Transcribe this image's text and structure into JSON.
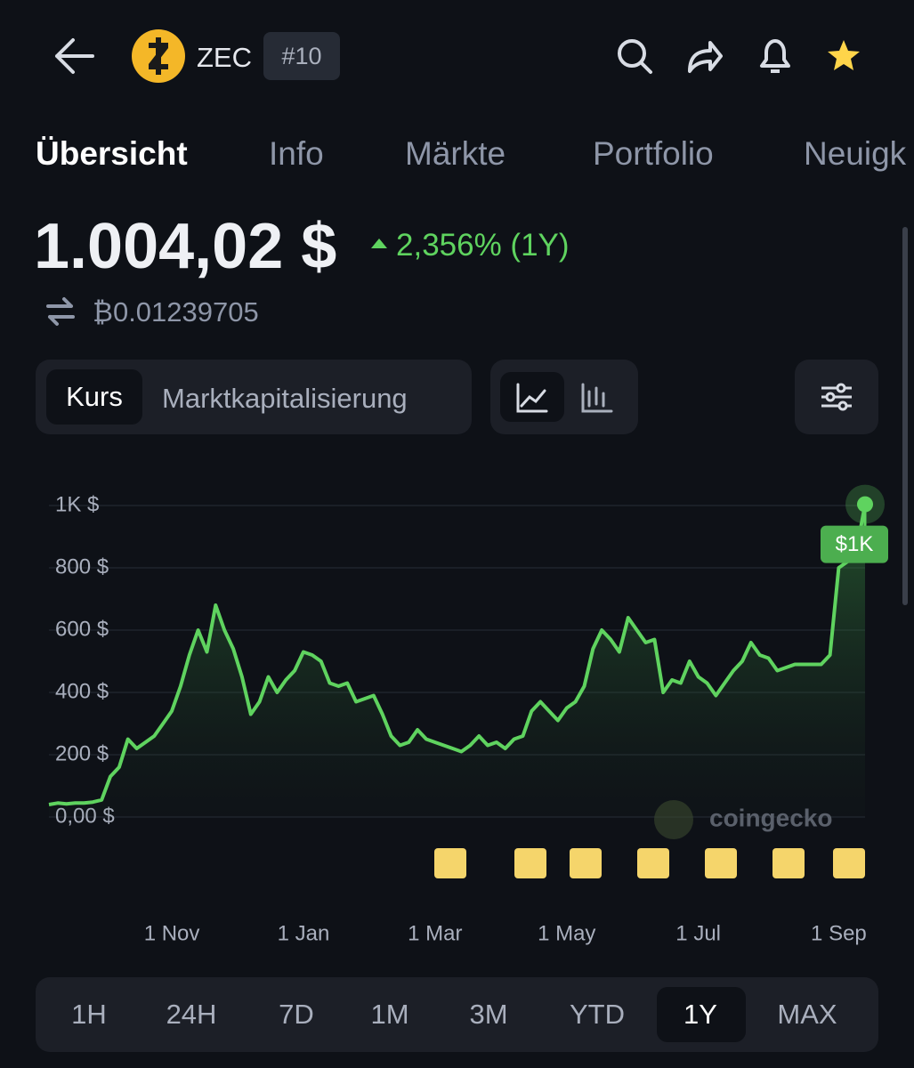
{
  "header": {
    "symbol": "ZEC",
    "rank": "#10"
  },
  "tabs": [
    "Übersicht",
    "Info",
    "Märkte",
    "Portfolio",
    "Neuigk"
  ],
  "price": {
    "value": "1.004,02 $",
    "change": "2,356% (1Y)",
    "btc": "₿0.01239705"
  },
  "toggle": [
    "Kurs",
    "Marktkapitalisierung"
  ],
  "chart_data": {
    "type": "line",
    "categories": [
      null,
      null,
      null,
      null,
      null,
      null,
      null,
      null,
      null,
      null,
      null,
      null,
      null,
      null,
      "1 Nov",
      null,
      null,
      null,
      null,
      null,
      null,
      null,
      null,
      null,
      null,
      null,
      null,
      null,
      null,
      "1 Jan",
      null,
      null,
      null,
      null,
      null,
      null,
      null,
      null,
      null,
      null,
      null,
      null,
      null,
      null,
      "1 Mar",
      null,
      null,
      null,
      null,
      null,
      null,
      null,
      null,
      null,
      null,
      null,
      null,
      null,
      null,
      "1 May",
      null,
      null,
      null,
      null,
      null,
      null,
      null,
      null,
      null,
      null,
      null,
      null,
      null,
      null,
      "1 Jul",
      null,
      null,
      null,
      null,
      null,
      null,
      null,
      null,
      null,
      null,
      null,
      null,
      null,
      null,
      null,
      "1 Sep",
      null,
      null,
      null
    ],
    "series": [
      {
        "color": "#5fd35f",
        "values": [
          40,
          45,
          42,
          45,
          45,
          48,
          55,
          130,
          160,
          250,
          220,
          240,
          260,
          300,
          340,
          420,
          520,
          600,
          530,
          680,
          600,
          540,
          450,
          330,
          370,
          450,
          400,
          440,
          470,
          530,
          520,
          500,
          430,
          420,
          430,
          370,
          380,
          390,
          330,
          260,
          230,
          240,
          280,
          250,
          240,
          230,
          220,
          210,
          230,
          260,
          230,
          240,
          220,
          250,
          260,
          340,
          370,
          340,
          310,
          350,
          370,
          420,
          540,
          600,
          570,
          530,
          640,
          600,
          560,
          570,
          400,
          440,
          430,
          500,
          450,
          430,
          390,
          430,
          470,
          500,
          560,
          520,
          510,
          470,
          480,
          490,
          490,
          490,
          490,
          520,
          800,
          820,
          850,
          1004
        ]
      }
    ],
    "ylim": [
      0,
      1000
    ],
    "yticks": [
      {
        "value": 0,
        "label": "0,00 $"
      },
      {
        "value": 200,
        "label": "200 $"
      },
      {
        "value": 400,
        "label": "400 $"
      },
      {
        "value": 600,
        "label": "600 $"
      },
      {
        "value": 800,
        "label": "800 $"
      },
      {
        "value": 1000,
        "label": "1K $"
      }
    ],
    "grid": true,
    "annotation": "$1K",
    "watermark": "coingecko"
  },
  "ranges": [
    "1H",
    "24H",
    "7D",
    "1M",
    "3M",
    "YTD",
    "1Y",
    "MAX"
  ]
}
